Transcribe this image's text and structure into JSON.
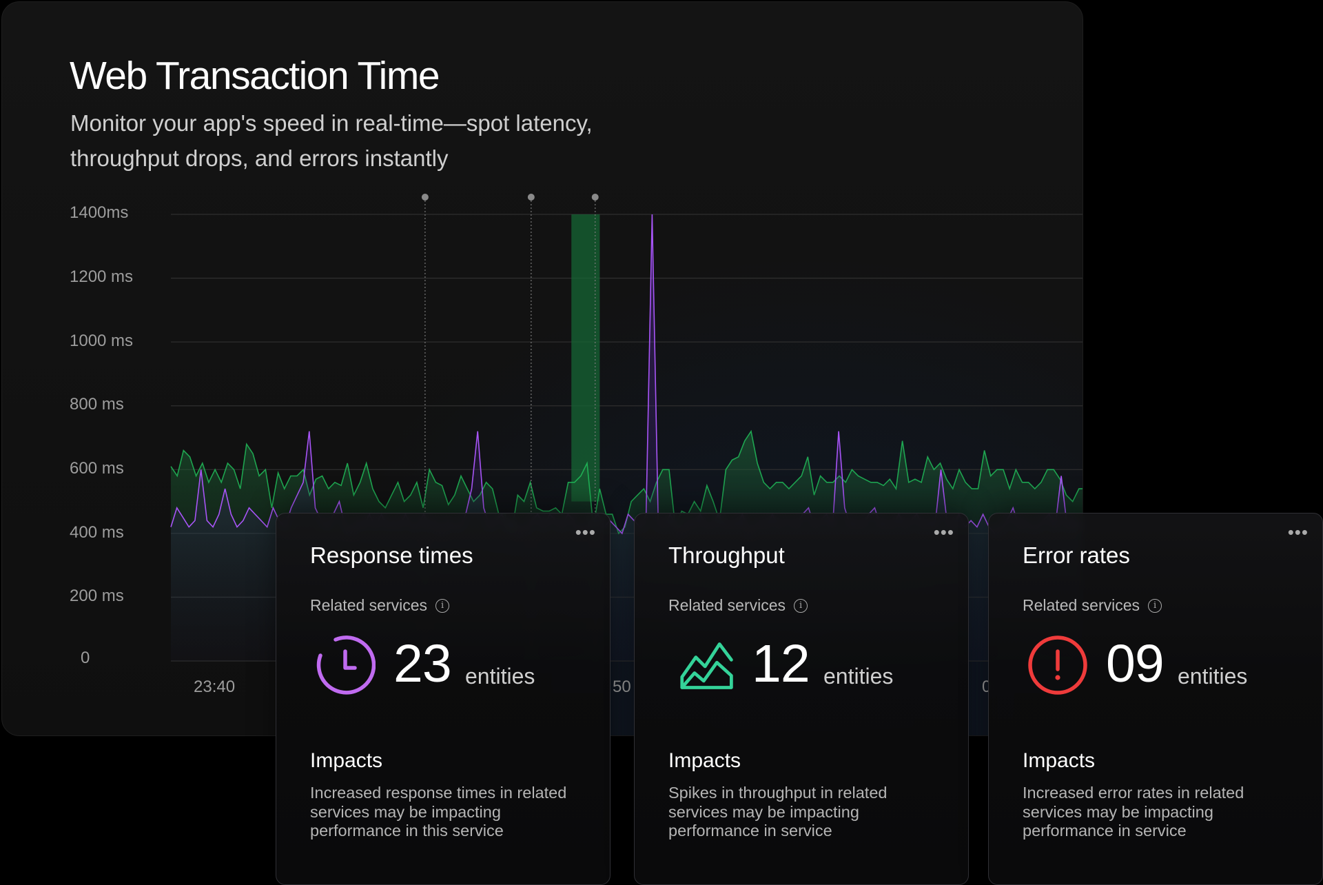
{
  "header": {
    "title": "Web Transaction Time",
    "subtitle": "Monitor your app's speed in real-time—spot latency, throughput drops, and errors instantly"
  },
  "chart_data": {
    "type": "line",
    "y_ticks": [
      "1400ms",
      "1200 ms",
      "1000 ms",
      "800 ms",
      "600 ms",
      "400 ms",
      "200 ms",
      "0"
    ],
    "x_ticks": [
      "23:40",
      "50",
      "0"
    ],
    "ylim": [
      0,
      1400
    ],
    "grid": true,
    "series": [
      {
        "color": "#22c55e",
        "style": "area",
        "values": [
          610,
          580,
          660,
          640,
          580,
          620,
          560,
          600,
          560,
          620,
          600,
          540,
          680,
          650,
          580,
          600,
          480,
          590,
          540,
          580,
          580,
          600,
          520,
          570,
          580,
          540,
          560,
          550,
          620,
          520,
          560,
          620,
          540,
          500,
          480,
          520,
          560,
          500,
          520,
          560,
          480,
          600,
          560,
          550,
          490,
          520,
          580,
          540,
          500,
          520,
          560,
          540,
          460,
          460,
          400,
          520,
          500,
          560,
          480,
          470,
          470,
          480,
          460,
          560,
          560,
          580,
          620,
          420,
          540,
          460,
          460,
          400,
          420,
          500,
          520,
          540,
          500,
          560,
          600,
          600,
          420,
          470,
          460,
          500,
          470,
          550,
          500,
          440,
          600,
          630,
          640,
          690,
          720,
          620,
          560,
          540,
          560,
          560,
          540,
          560,
          580,
          640,
          520,
          580,
          560,
          560,
          580,
          560,
          600,
          580,
          570,
          560,
          560,
          550,
          570,
          540,
          690,
          560,
          570,
          560,
          640,
          600,
          620,
          570,
          540,
          600,
          560,
          540,
          540,
          660,
          580,
          600,
          600,
          540,
          600,
          560,
          560,
          540,
          560,
          600,
          600,
          570,
          520,
          500,
          540,
          540
        ]
      },
      {
        "color": "#a855f7",
        "style": "line",
        "values": [
          420,
          480,
          450,
          420,
          440,
          600,
          440,
          420,
          460,
          540,
          460,
          420,
          440,
          480,
          460,
          440,
          420,
          480,
          440,
          420,
          480,
          520,
          560,
          720,
          480,
          440,
          420,
          460,
          500,
          420,
          400,
          440,
          420,
          460,
          420,
          460,
          420,
          440,
          420,
          460,
          420,
          420,
          460,
          420,
          440,
          400,
          440,
          420,
          420,
          460,
          540,
          720,
          480,
          420,
          440,
          460,
          420,
          440,
          400,
          420,
          440,
          460,
          420,
          460,
          440,
          420,
          460,
          440,
          400,
          420,
          440,
          460,
          420,
          440,
          420,
          400,
          460,
          440,
          420,
          460,
          1400,
          440,
          420,
          460,
          420,
          400,
          440,
          420,
          460,
          420,
          420,
          460,
          420,
          440,
          420,
          460,
          400,
          420,
          440,
          420,
          460,
          420,
          440,
          440,
          420,
          460,
          480,
          420,
          440,
          460,
          420,
          720,
          480,
          420,
          440,
          420,
          460,
          480,
          420,
          440,
          420,
          460,
          420,
          440,
          460,
          420,
          440,
          420,
          600,
          440,
          420,
          460,
          420,
          440,
          420,
          460,
          420,
          400,
          420,
          440,
          480,
          420,
          440,
          420,
          420,
          440,
          460,
          420,
          580,
          420,
          440,
          420,
          440
        ]
      }
    ],
    "highlight_band": {
      "y_range": [
        500,
        1400
      ],
      "color": "#166534"
    },
    "markers": 3
  },
  "cards": [
    {
      "title": "Response times",
      "related": "Related services",
      "icon": "clock-icon",
      "color": "#c06bf0",
      "count": "23",
      "unit": "entities",
      "impacts_title": "Impacts",
      "impacts_text": "Increased response times in related services may be impacting performance in this service"
    },
    {
      "title": "Throughput",
      "related": "Related services",
      "icon": "area-chart-icon",
      "color": "#34d399",
      "count": "12",
      "unit": "entities",
      "impacts_title": "Impacts",
      "impacts_text": "Spikes in throughput in related services may be impacting performance in service"
    },
    {
      "title": "Error rates",
      "related": "Related services",
      "icon": "alert-circle-icon",
      "color": "#ef3b3b",
      "count": "09",
      "unit": "entities",
      "impacts_title": "Impacts",
      "impacts_text": "Increased error rates in related services may be impacting performance in service"
    }
  ]
}
